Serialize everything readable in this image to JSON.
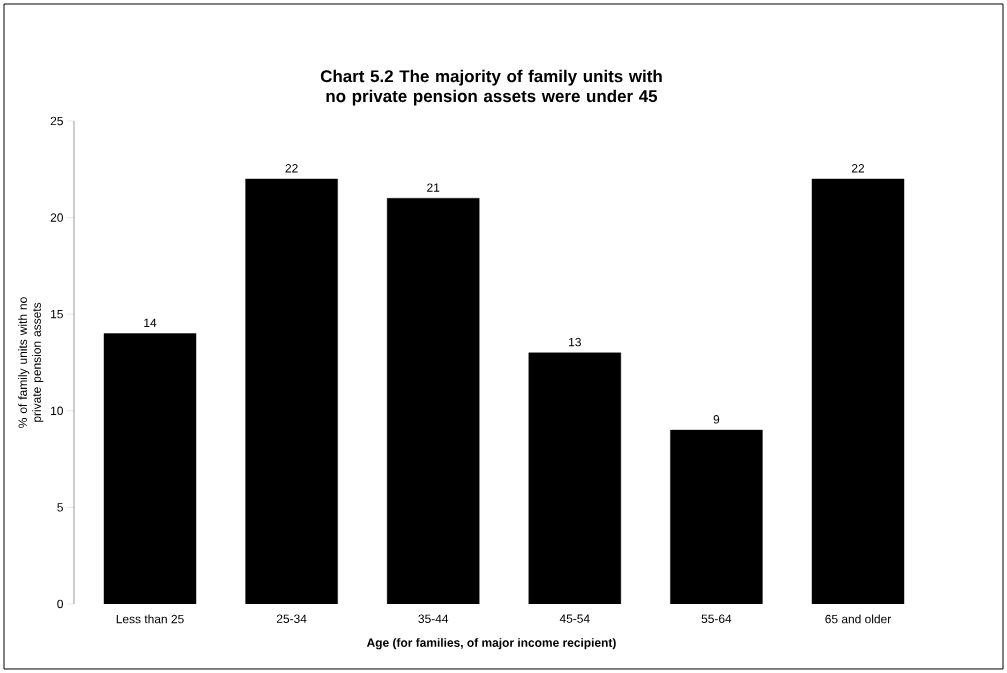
{
  "chart_data": {
    "type": "bar",
    "title": "Chart 5.2  The majority of family units with no private pension assets were under 45",
    "xlabel": "Age (for families, of major income recipient)",
    "ylabel": "% of family units with no private pension assets",
    "categories": [
      "Less than 25",
      "25-34",
      "35-44",
      "45-54",
      "55-64",
      "65 and older"
    ],
    "values": [
      14,
      22,
      21,
      13,
      9,
      22
    ],
    "color": "#000000",
    "ylim": [
      0,
      25
    ],
    "yticks": [
      0,
      5,
      10,
      15,
      20,
      25
    ],
    "data_labels": true
  }
}
